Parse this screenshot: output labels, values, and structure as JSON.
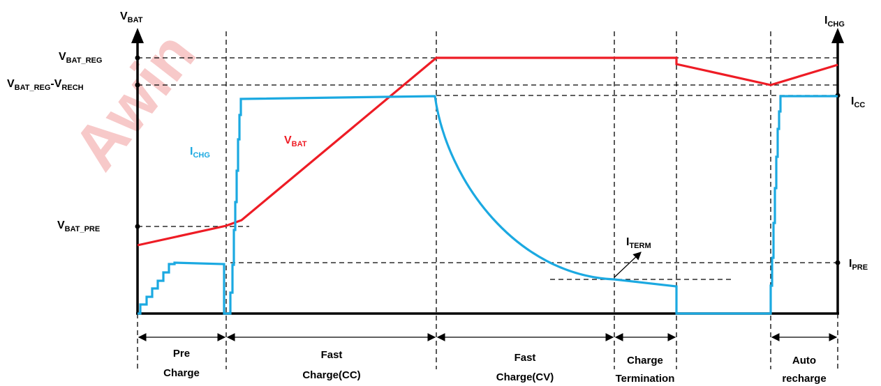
{
  "watermark": "Awin",
  "colors": {
    "vbat": "#ee1c25",
    "ichg": "#1ba9e1",
    "axis": "#000000",
    "watermark": "#f7c9c9"
  },
  "axes": {
    "left_label": {
      "main": "V",
      "sub": "BAT"
    },
    "right_label": {
      "main": "I",
      "sub": "CHG"
    }
  },
  "left_levels": {
    "vbat_reg": {
      "main": "V",
      "sub": "BAT_REG"
    },
    "vbat_reg_rech": {
      "main1": "V",
      "sub1": "BAT_REG",
      "dash": "-V",
      "sub2": "RECH"
    },
    "vbat_pre": {
      "main": "V",
      "sub": "BAT_PRE"
    }
  },
  "right_levels": {
    "icc": {
      "main": "I",
      "sub": "CC"
    },
    "ipre": {
      "main": "I",
      "sub": "PRE"
    }
  },
  "curve_labels": {
    "ichg": {
      "main": "I",
      "sub": "CHG"
    },
    "vbat": {
      "main": "V",
      "sub": "BAT"
    },
    "iterm": {
      "main": "I",
      "sub": "TERM"
    }
  },
  "phases": [
    {
      "line1": "Pre",
      "line2": "Charge"
    },
    {
      "line1": "Fast",
      "line2": "Charge(CC)"
    },
    {
      "line1": "Fast",
      "line2": "Charge(CV)"
    },
    {
      "line1": "Charge",
      "line2": "Termination"
    },
    {
      "line1": "Auto",
      "line2": "recharge"
    }
  ]
}
